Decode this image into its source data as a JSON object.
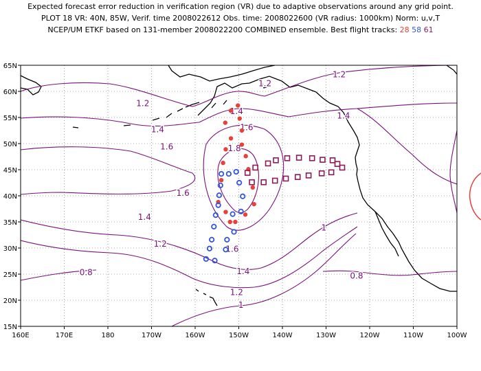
{
  "header": {
    "line1": "Expected forecast error reduction in verification region (VR) due to adaptive observations around any grid point.",
    "line2": "PLOT 18 VR: 40N, 85W, Verif. time 2008022612 Obs. time: 2008022600 (VR radius: 1000km) Norm: u,v,T",
    "line3_prefix": "NCEP/UM ETKF based on 131-member 2008022200 COMBINED ensemble.  Best flight tracks:",
    "track_a": "28",
    "track_b": "58",
    "track_c": "61"
  },
  "map": {
    "lon_labels": [
      "160E",
      "170E",
      "180",
      "170W",
      "160W",
      "150W",
      "140W",
      "130W",
      "120W",
      "110W",
      "100W"
    ],
    "lat_labels": [
      "15N",
      "20N",
      "25N",
      "30N",
      "35N",
      "40N",
      "45N",
      "50N",
      "55N",
      "60N",
      "65N"
    ],
    "contour_labels": [
      {
        "text": "1.2",
        "lon": -144,
        "lat": 61.5
      },
      {
        "text": "1.2",
        "lon": -127,
        "lat": 63.2
      },
      {
        "text": "1.2",
        "lon": -172,
        "lat": 57.7
      },
      {
        "text": "1.4",
        "lon": -150.5,
        "lat": 56.2
      },
      {
        "text": "1.4",
        "lon": -126,
        "lat": 55.3
      },
      {
        "text": "1.4",
        "lon": -168.6,
        "lat": 52.7
      },
      {
        "text": "1.6",
        "lon": -148.2,
        "lat": 53.1
      },
      {
        "text": "1.6",
        "lon": -166.5,
        "lat": 49.4
      },
      {
        "text": "1.6",
        "lon": -162.8,
        "lat": 40.5
      },
      {
        "text": "1.8",
        "lon": -151,
        "lat": 49.1
      },
      {
        "text": "1.6",
        "lon": -151.5,
        "lat": 29.8
      },
      {
        "text": "1.4",
        "lon": -171.6,
        "lat": 35.9
      },
      {
        "text": "1.4",
        "lon": -149,
        "lat": 25.5
      },
      {
        "text": "1.2",
        "lon": -168,
        "lat": 30.8
      },
      {
        "text": "1.2",
        "lon": -150.5,
        "lat": 21.5
      },
      {
        "text": "1",
        "lon": -130.5,
        "lat": 33.9
      },
      {
        "text": "1",
        "lon": -149.5,
        "lat": 19.1
      },
      {
        "text": "0.8",
        "lon": -185,
        "lat": 25.3
      },
      {
        "text": "0.8",
        "lon": -123,
        "lat": 24.7
      }
    ]
  },
  "tracks": {
    "red": [
      [
        -150.2,
        57.3
      ],
      [
        -151.8,
        56.3
      ],
      [
        -149.8,
        54.8
      ],
      [
        -153.1,
        54.0
      ],
      [
        -149.3,
        52.5
      ],
      [
        -151.8,
        51.0
      ],
      [
        -149.3,
        49.8
      ],
      [
        -153.0,
        48.9
      ],
      [
        -148.4,
        47.6
      ],
      [
        -153.6,
        46.3
      ],
      [
        -147.8,
        45.1
      ],
      [
        -154.0,
        43.0
      ],
      [
        -146.8,
        41.6
      ],
      [
        -154.7,
        38.8
      ],
      [
        -146.5,
        38.4
      ],
      [
        -153.0,
        36.9
      ],
      [
        -148.5,
        36.4
      ],
      [
        -152.0,
        35.0
      ],
      [
        -150.8,
        35.0
      ]
    ],
    "blue": [
      [
        -150.6,
        44.6
      ],
      [
        -154.0,
        44.2
      ],
      [
        -152.3,
        44.2
      ],
      [
        -149.9,
        42.5
      ],
      [
        -154.2,
        42.0
      ],
      [
        -154.5,
        40.1
      ],
      [
        -149.1,
        39.9
      ],
      [
        -154.7,
        38.2
      ],
      [
        -149.5,
        37.0
      ],
      [
        -155.3,
        36.3
      ],
      [
        -151.4,
        36.5
      ],
      [
        -155.7,
        34.1
      ],
      [
        -151.1,
        33.1
      ],
      [
        -156.2,
        31.6
      ],
      [
        -152.7,
        31.6
      ],
      [
        -156.7,
        29.9
      ],
      [
        -153.0,
        29.7
      ],
      [
        -157.5,
        27.9
      ],
      [
        -155.5,
        27.6
      ]
    ],
    "purple": [
      [
        -148.0,
        44.4
      ],
      [
        -146.2,
        45.4
      ],
      [
        -143.3,
        46.2
      ],
      [
        -141.5,
        46.8
      ],
      [
        -138.9,
        47.2
      ],
      [
        -136.2,
        47.3
      ],
      [
        -133.2,
        47.2
      ],
      [
        -130.8,
        46.9
      ],
      [
        -128.5,
        46.8
      ],
      [
        -127.4,
        46.1
      ],
      [
        -126.3,
        45.4
      ],
      [
        -128.8,
        44.5
      ],
      [
        -131.0,
        44.3
      ],
      [
        -134.0,
        43.9
      ],
      [
        -136.5,
        43.6
      ],
      [
        -139.2,
        43.3
      ],
      [
        -141.7,
        42.9
      ],
      [
        -144.3,
        42.6
      ],
      [
        -147.0,
        42.6
      ]
    ]
  }
}
